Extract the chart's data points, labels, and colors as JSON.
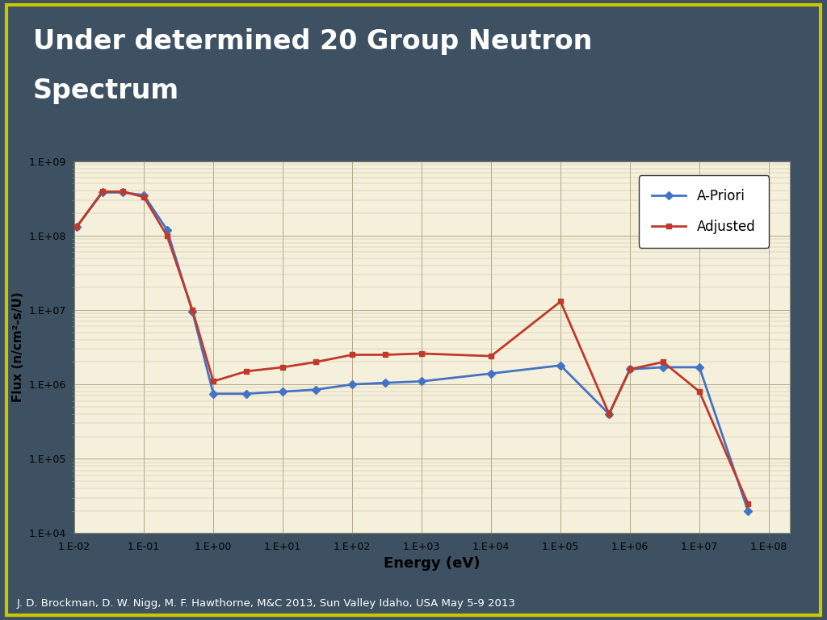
{
  "title_line1": "Under determined 20 Group Neutron",
  "title_line2": "Spectrum",
  "footnote": "J. D. Brockman, D. W. Nigg, M. F. Hawthorne, M&C 2013, Sun Valley Idaho, USA May 5-9 2013",
  "xlabel": "Energy (eV)",
  "ylabel": "Flux (n/cm²-s/U)",
  "bg_color": "#3d5163",
  "border_color": "#c8c800",
  "plot_bg_color": "#f5f0dc",
  "apriori_color": "#4472c4",
  "adjusted_color": "#c0392b",
  "apriori_x": [
    0.0107,
    0.0253,
    0.05,
    0.1,
    0.215,
    0.5,
    1.0,
    3.0,
    10.0,
    30.0,
    100.0,
    300.0,
    1000.0,
    10000.0,
    100000.0,
    500000.0,
    1000000.0,
    3000000.0,
    10000000.0,
    50000000.0
  ],
  "apriori_y": [
    130000000.0,
    380000000.0,
    380000000.0,
    350000000.0,
    120000000.0,
    9500000.0,
    750000.0,
    750000.0,
    800000.0,
    850000.0,
    1000000.0,
    1050000.0,
    1100000.0,
    1400000.0,
    1800000.0,
    400000.0,
    1600000.0,
    1700000.0,
    1700000.0,
    20000.0
  ],
  "adjusted_x": [
    0.0107,
    0.0253,
    0.05,
    0.1,
    0.215,
    0.5,
    1.0,
    3.0,
    10.0,
    30.0,
    100.0,
    300.0,
    1000.0,
    10000.0,
    100000.0,
    500000.0,
    1000000.0,
    3000000.0,
    10000000.0,
    50000000.0
  ],
  "adjusted_y": [
    130000000.0,
    390000000.0,
    390000000.0,
    330000000.0,
    100000000.0,
    10000000.0,
    1100000.0,
    1500000.0,
    1700000.0,
    2000000.0,
    2500000.0,
    2500000.0,
    2600000.0,
    2400000.0,
    13000000.0,
    400000.0,
    1600000.0,
    2000000.0,
    800000.0,
    25000.0
  ],
  "xlim_min": 0.01,
  "xlim_max": 200000000.0,
  "ylim_min": 10000.0,
  "ylim_max": 1000000000.0,
  "x_ticks": [
    0.01,
    0.1,
    1.0,
    10.0,
    100.0,
    1000.0,
    10000.0,
    100000.0,
    1000000.0,
    10000000.0,
    100000000.0
  ],
  "x_tick_labels": [
    "1.E-02",
    "1.E-01",
    "1.E+00",
    "1.E+01",
    "1.E+02",
    "1.E+03",
    "1.E+04",
    "1.E+05",
    "1.E+06",
    "1.E+07",
    "1.E+08"
  ],
  "y_ticks": [
    10000.0,
    100000.0,
    1000000.0,
    10000000.0,
    100000000.0,
    1000000000.0
  ],
  "y_tick_labels": [
    "1.E+04",
    "1.E+05",
    "1.E+06",
    "1.E+07",
    "1.E+08",
    "1.E+09"
  ]
}
